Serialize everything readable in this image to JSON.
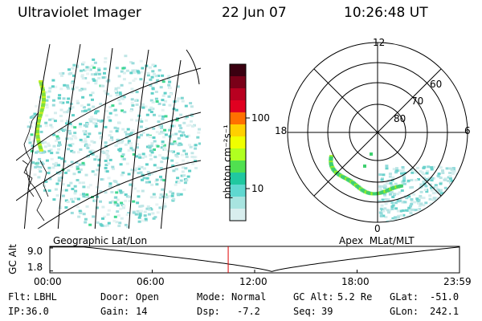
{
  "header": {
    "instrument": "Ultraviolet Imager",
    "date": "22 Jun 07",
    "time": "10:26:48 UT"
  },
  "colorbar": {
    "unit_label": "photon cm⁻²s⁻¹",
    "tick_labels": [
      "100",
      "10"
    ],
    "colors": [
      "#3a0010",
      "#7a0018",
      "#b80020",
      "#e00020",
      "#ff7000",
      "#ffd000",
      "#f0ff00",
      "#b0ff20",
      "#50e050",
      "#20c8a0",
      "#60d8d0",
      "#a8e4e0",
      "#d8eeee"
    ]
  },
  "geo_panel": {
    "label": "Geographic Lat/Lon"
  },
  "polar_panel": {
    "label": "Apex  MLat/MLT",
    "lat_labels": [
      "60",
      "70",
      "80"
    ],
    "mlt_labels": {
      "top": "12",
      "left": "18",
      "right": "6",
      "bottom": "0"
    }
  },
  "altitude_plot": {
    "axis_label": "GC Alt",
    "y_ticks": [
      "9.0",
      "1.8"
    ],
    "x_ticks": [
      "00:00",
      "06:00",
      "12:00",
      "18:00",
      "23:59"
    ],
    "current_time_hours": 10.45
  },
  "status": {
    "row1": [
      {
        "key": "Flt:",
        "value": "LBHL"
      },
      {
        "key": "Door:",
        "value": "Open"
      },
      {
        "key": "Mode:",
        "value": "Normal"
      },
      {
        "key": "GC Alt:",
        "value": "5.2 Re"
      },
      {
        "key": "GLat:",
        "value": "-51.0"
      }
    ],
    "row2": [
      {
        "key": "IP:",
        "value": "36.0"
      },
      {
        "key": "Gain:",
        "value": "14"
      },
      {
        "key": "Dsp:",
        "value": "-7.2"
      },
      {
        "key": "Seq:",
        "value": "39"
      },
      {
        "key": "GLon:",
        "value": "242.1"
      }
    ]
  }
}
